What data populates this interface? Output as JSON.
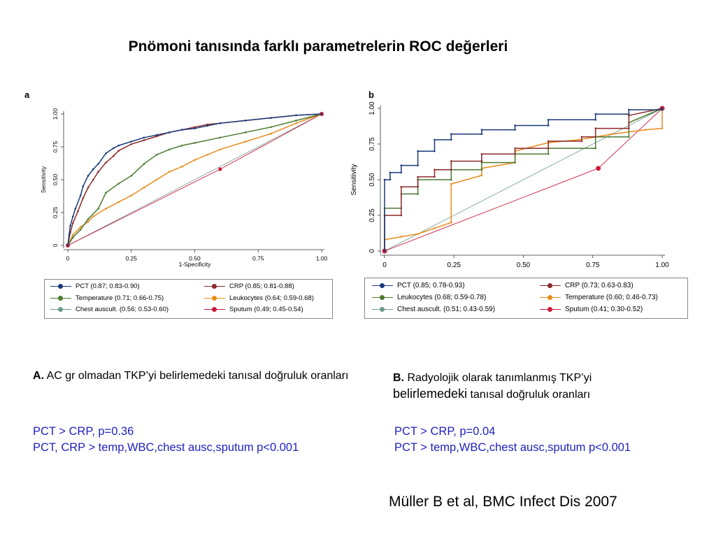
{
  "title": "Pnömoni tanısında farklı parametrelerin ROC değerleri",
  "chart_data": [
    {
      "panel": "a",
      "type": "line",
      "xlabel": "1-Specificity",
      "ylabel": "Sensitivity",
      "xlim": [
        0,
        1
      ],
      "ylim": [
        0,
        1
      ],
      "xticks": [
        "0",
        "0.25",
        "0.50",
        "0.75",
        "1.00"
      ],
      "yticks": [
        "0",
        "0.25",
        "0.50",
        "0.75",
        "1.00"
      ],
      "series": [
        {
          "name": "PCT (0.87; 0.83-0.90)",
          "color": "#1a3a7a",
          "x": [
            0,
            0.005,
            0.01,
            0.02,
            0.03,
            0.05,
            0.06,
            0.08,
            0.1,
            0.12,
            0.15,
            0.18,
            0.2,
            0.25,
            0.3,
            0.35,
            0.4,
            0.45,
            0.5,
            0.55,
            0.6,
            0.7,
            0.8,
            0.9,
            1.0
          ],
          "y": [
            0,
            0.08,
            0.15,
            0.22,
            0.28,
            0.38,
            0.45,
            0.53,
            0.58,
            0.62,
            0.7,
            0.74,
            0.76,
            0.79,
            0.82,
            0.84,
            0.86,
            0.88,
            0.89,
            0.91,
            0.93,
            0.95,
            0.97,
            0.99,
            1.0
          ]
        },
        {
          "name": "CRP (0.85; 0.81-0.88)",
          "color": "#8b2a2a",
          "x": [
            0,
            0.01,
            0.02,
            0.04,
            0.06,
            0.08,
            0.1,
            0.12,
            0.15,
            0.18,
            0.2,
            0.25,
            0.3,
            0.35,
            0.4,
            0.45,
            0.5,
            0.55,
            0.6,
            0.7,
            0.8,
            0.9,
            1.0
          ],
          "y": [
            0,
            0.1,
            0.17,
            0.26,
            0.36,
            0.44,
            0.5,
            0.56,
            0.63,
            0.68,
            0.72,
            0.77,
            0.8,
            0.83,
            0.86,
            0.88,
            0.9,
            0.92,
            0.93,
            0.95,
            0.97,
            0.99,
            1.0
          ]
        },
        {
          "name": "Temperature (0.71; 0.66-0.75)",
          "color": "#4a7a30",
          "x": [
            0,
            0.02,
            0.05,
            0.08,
            0.12,
            0.15,
            0.2,
            0.25,
            0.3,
            0.35,
            0.4,
            0.45,
            0.5,
            0.6,
            0.7,
            0.8,
            0.9,
            1.0
          ],
          "y": [
            0,
            0.06,
            0.12,
            0.2,
            0.28,
            0.4,
            0.47,
            0.53,
            0.62,
            0.69,
            0.73,
            0.76,
            0.78,
            0.82,
            0.86,
            0.9,
            0.95,
            1.0
          ]
        },
        {
          "name": "Leukocytes (0.64; 0.59-0.68)",
          "color": "#e88a1a",
          "x": [
            0,
            0.02,
            0.05,
            0.08,
            0.1,
            0.15,
            0.2,
            0.25,
            0.3,
            0.35,
            0.4,
            0.45,
            0.5,
            0.55,
            0.6,
            0.7,
            0.8,
            0.9,
            1.0
          ],
          "y": [
            0,
            0.08,
            0.14,
            0.18,
            0.22,
            0.28,
            0.33,
            0.38,
            0.44,
            0.5,
            0.56,
            0.6,
            0.65,
            0.69,
            0.73,
            0.79,
            0.85,
            0.93,
            1.0
          ]
        },
        {
          "name": "Chest auscult. (0.56; 0.53-0.60)",
          "color": "#6a9a8a",
          "x": [
            0,
            1
          ],
          "y": [
            0,
            1
          ]
        },
        {
          "name": "Sputum (0.49; 0.45-0.54)",
          "color": "#cc1a3a",
          "x": [
            0,
            0.6,
            1
          ],
          "y": [
            0,
            0.58,
            1
          ]
        }
      ]
    },
    {
      "panel": "b",
      "type": "line",
      "xlabel": "",
      "ylabel": "Sensitivity",
      "xlim": [
        0,
        1
      ],
      "ylim": [
        0,
        1
      ],
      "xticks": [
        "0",
        "0.25",
        "0.50",
        "0.75",
        "1.00"
      ],
      "yticks": [
        "0",
        "0.25",
        "0.50",
        "0.75",
        "1.00"
      ],
      "series": [
        {
          "name": "PCT (0.85; 0.78-0.93)",
          "color": "#1a3a7a",
          "x": [
            0,
            0,
            0.02,
            0.02,
            0.06,
            0.06,
            0.12,
            0.12,
            0.18,
            0.18,
            0.24,
            0.24,
            0.35,
            0.35,
            0.47,
            0.47,
            0.59,
            0.59,
            0.76,
            0.76,
            0.88,
            0.88,
            1.0,
            1.0
          ],
          "y": [
            0,
            0.5,
            0.5,
            0.55,
            0.55,
            0.6,
            0.6,
            0.7,
            0.7,
            0.78,
            0.78,
            0.82,
            0.82,
            0.85,
            0.85,
            0.88,
            0.88,
            0.92,
            0.92,
            0.96,
            0.96,
            0.99,
            0.99,
            1.0
          ]
        },
        {
          "name": "CRP (0.73; 0.63-0.83)",
          "color": "#8b2a2a",
          "x": [
            0,
            0,
            0.06,
            0.06,
            0.12,
            0.12,
            0.18,
            0.18,
            0.24,
            0.24,
            0.35,
            0.35,
            0.47,
            0.47,
            0.59,
            0.59,
            0.71,
            0.71,
            0.76,
            0.76,
            0.88,
            0.88,
            1.0
          ],
          "y": [
            0,
            0.25,
            0.25,
            0.45,
            0.45,
            0.52,
            0.52,
            0.57,
            0.57,
            0.63,
            0.63,
            0.68,
            0.68,
            0.72,
            0.72,
            0.77,
            0.77,
            0.8,
            0.8,
            0.86,
            0.86,
            0.95,
            1.0
          ]
        },
        {
          "name": "Leukocytes (0.68; 0.59-0.78)",
          "color": "#4a7a30",
          "x": [
            0,
            0,
            0.06,
            0.06,
            0.12,
            0.12,
            0.24,
            0.24,
            0.35,
            0.35,
            0.47,
            0.47,
            0.59,
            0.59,
            0.76,
            0.76,
            0.88,
            0.88,
            1.0
          ],
          "y": [
            0,
            0.3,
            0.3,
            0.4,
            0.4,
            0.5,
            0.5,
            0.57,
            0.57,
            0.62,
            0.62,
            0.68,
            0.68,
            0.72,
            0.72,
            0.8,
            0.8,
            0.9,
            1.0
          ]
        },
        {
          "name": "Temperature (0.60; 0.46-0.73)",
          "color": "#e88a1a",
          "x": [
            0,
            0,
            0.06,
            0.12,
            0.18,
            0.24,
            0.24,
            0.35,
            0.35,
            0.47,
            0.47,
            0.59,
            0.7,
            0.82,
            0.94,
            1.0,
            1.0
          ],
          "y": [
            0,
            0.08,
            0.1,
            0.12,
            0.16,
            0.2,
            0.47,
            0.53,
            0.58,
            0.62,
            0.7,
            0.76,
            0.78,
            0.82,
            0.85,
            0.86,
            1.0
          ]
        },
        {
          "name": "Chest auscult. (0.51; 0.43-0.59)",
          "color": "#6a9a8a",
          "x": [
            0,
            1
          ],
          "y": [
            0,
            1
          ]
        },
        {
          "name": "Sputum (0.41; 0.30-0.52)",
          "color": "#cc1a3a",
          "x": [
            0,
            0.77,
            1
          ],
          "y": [
            0,
            0.58,
            1
          ]
        }
      ]
    }
  ],
  "captions": {
    "a_bold": "A.",
    "a_text": "AC gr olmadan TKP’yi belirlemedeki tanısal doğruluk oranları",
    "a_stat1": "PCT > CRP, p=0.36",
    "a_stat2": "PCT, CRP > temp,WBC,chest ausc,sputum  p<0.001",
    "b_bold": "B.",
    "b_text1": "Radyolojik olarak tanımlanmış TKP’yi",
    "b_text2a": "belirlemedeki",
    "b_text2b": "tanısal doğruluk oranları",
    "b_stat1": "PCT > CRP, p=0.04",
    "b_stat2": "PCT > temp,WBC,chest ausc,sputum  p<0.001"
  },
  "citation": "Müller B et al, BMC Infect Dis 2007"
}
